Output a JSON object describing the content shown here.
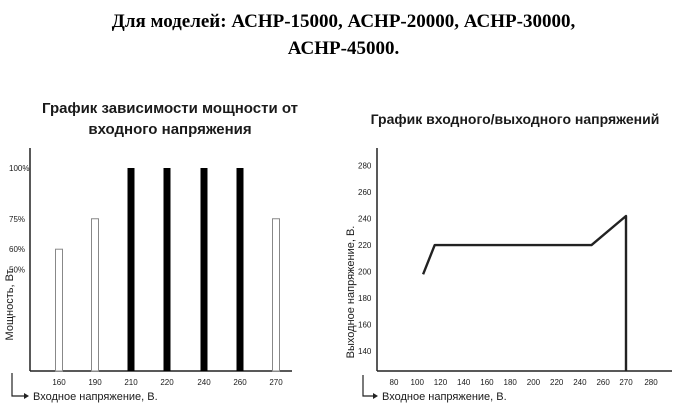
{
  "header": {
    "line1": "Для моделей: АСНР-15000, АСНР-20000, АСНР-30000,",
    "line2": "АСНР-45000."
  },
  "chart_data": [
    {
      "type": "bar",
      "title_lines": [
        "График зависимости мощности от",
        "входного напряжения"
      ],
      "xlabel": "Входное напряжение, В.",
      "ylabel": "Мощность, Вт.",
      "categories": [
        "160",
        "190",
        "210",
        "220",
        "240",
        "260",
        "270"
      ],
      "values": [
        60,
        75,
        100,
        100,
        100,
        100,
        75
      ],
      "bar_fill": [
        "outline",
        "outline",
        "solid",
        "solid",
        "solid",
        "solid",
        "outline"
      ],
      "ytick_labels": [
        "100%",
        "75%",
        "60%",
        "50%"
      ],
      "ytick_values": [
        100,
        75,
        60,
        50
      ],
      "ylim": [
        0,
        100
      ],
      "colors": {
        "solid": "#000000",
        "outline": "#888888"
      }
    },
    {
      "type": "line",
      "title": "График входного/выходного напряжений",
      "xlabel": "Входное напряжение, В.",
      "ylabel": "Выходное напряжение, В.",
      "x": [
        105,
        115,
        250,
        270,
        270
      ],
      "y": [
        198,
        220,
        220,
        242,
        125
      ],
      "xticks": [
        80,
        100,
        120,
        140,
        160,
        180,
        200,
        220,
        240,
        260,
        270,
        280
      ],
      "yticks": [
        140,
        160,
        180,
        200,
        220,
        240,
        260,
        280
      ],
      "xlim": [
        70,
        290
      ],
      "ylim": [
        125,
        290
      ],
      "color": "#222222"
    }
  ]
}
